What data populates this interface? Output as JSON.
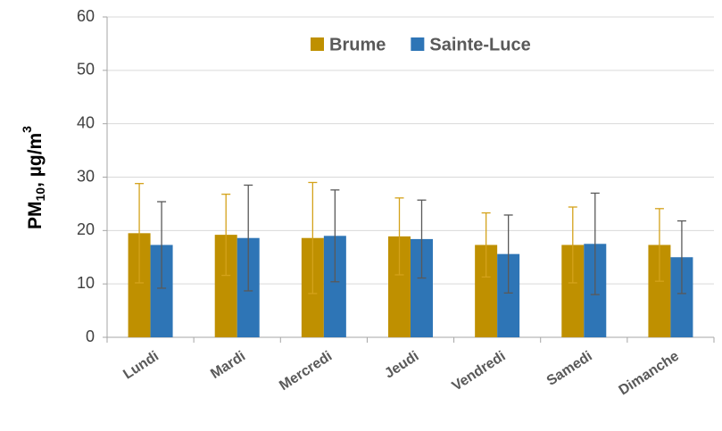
{
  "chart_data": {
    "type": "bar",
    "y_label": [
      "PM",
      "10",
      ", µg/m",
      "3"
    ],
    "categories": [
      "Lundi",
      "Mardi",
      "Mercredi",
      "Jeudi",
      "Vendredi",
      "Samedi",
      "Dimanche"
    ],
    "series": [
      {
        "name": "Brume",
        "color": "#bf9000",
        "error_color": "#d4a21a",
        "values": [
          19.5,
          19.2,
          18.6,
          18.9,
          17.3,
          17.3,
          17.3
        ],
        "errors": [
          9.3,
          7.6,
          10.4,
          7.2,
          6.0,
          7.1,
          6.8
        ]
      },
      {
        "name": "Sainte-Luce",
        "color": "#2e75b6",
        "error_color": "#595959",
        "values": [
          17.3,
          18.6,
          19.0,
          18.4,
          15.6,
          17.5,
          15.0
        ],
        "errors": [
          8.1,
          9.9,
          8.6,
          7.3,
          7.3,
          9.5,
          6.8
        ]
      }
    ],
    "ylim": [
      0,
      60
    ],
    "yticks": [
      0,
      10,
      20,
      30,
      40,
      50,
      60
    ],
    "grid": true,
    "legend": "top"
  }
}
